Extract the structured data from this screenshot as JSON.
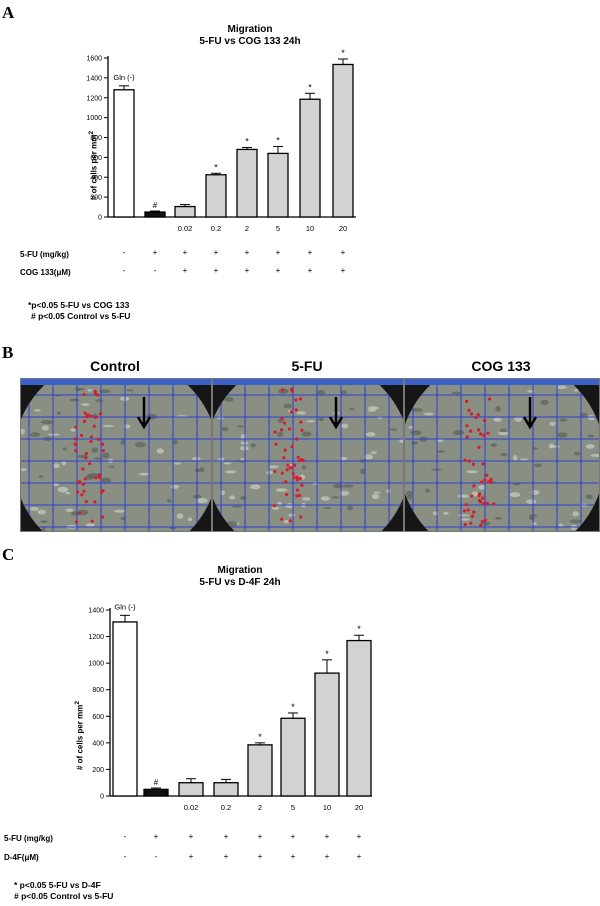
{
  "panel_a": {
    "label": "A",
    "title": "Migration",
    "subtitle": "5-FU vs COG 133 24h",
    "ylabel": "# of cells per mm",
    "ylabel_sup": "2",
    "gln_label": "Gln (-)",
    "row1_label": "5-FU (mg/kg)",
    "row2_label": "COG 133(μM)",
    "row1_marks": [
      "-",
      "+",
      "+",
      "+",
      "+",
      "+",
      "+",
      "+"
    ],
    "row2_marks": [
      "-",
      "-",
      "+",
      "+",
      "+",
      "+",
      "+",
      "+"
    ],
    "note1": "*p<0.05 5-FU vs COG 133",
    "note2": "# p<0.05 Control vs 5-FU"
  },
  "panel_b": {
    "label": "B",
    "image_titles": [
      "Control",
      "5-FU",
      "COG 133"
    ]
  },
  "panel_c": {
    "label": "C",
    "title": "Migration",
    "subtitle": "5-FU vs D-4F 24h",
    "ylabel": "# of cells per mm",
    "ylabel_sup": "2",
    "gln_label": "Gln (-)",
    "row1_label": "5-FU (mg/kg)",
    "row2_label": "D-4F(μM)",
    "row1_marks": [
      "-",
      "+",
      "+",
      "+",
      "+",
      "+",
      "+",
      "+"
    ],
    "row2_marks": [
      "-",
      "-",
      "+",
      "+",
      "+",
      "+",
      "+",
      "+"
    ],
    "note1": "* p<0.05 5-FU vs D-4F",
    "note2": "# p<0.05 Control vs 5-FU"
  },
  "colors": {
    "white_bar": "#ffffff",
    "black_bar": "#111111",
    "gray_bar": "#d2d2d2",
    "red_dots": "#d81c2c",
    "grid_blue": "#2b3fd6"
  },
  "chart_data": [
    {
      "type": "bar",
      "title": "Migration",
      "subtitle": "5-FU vs COG 133 24h",
      "xlabel": "",
      "ylabel": "# of cells per mm2",
      "ylim": [
        0,
        1600
      ],
      "yticks": [
        0,
        200,
        400,
        600,
        800,
        1000,
        1200,
        1400,
        1600
      ],
      "categories": [
        "",
        "",
        "0.02",
        "0.2",
        "2",
        "5",
        "10",
        "20"
      ],
      "values": [
        1280,
        50,
        105,
        425,
        680,
        640,
        1185,
        1535
      ],
      "errors": [
        40,
        10,
        20,
        15,
        20,
        70,
        60,
        55
      ],
      "markers": [
        "",
        "#",
        "",
        "*",
        "*",
        "*",
        "*",
        "*"
      ],
      "bar_colors": [
        "white",
        "black",
        "gray",
        "gray",
        "gray",
        "gray",
        "gray",
        "gray"
      ]
    },
    {
      "type": "bar",
      "title": "Migration",
      "subtitle": "5-FU vs D-4F 24h",
      "xlabel": "",
      "ylabel": "# of cells per mm2",
      "ylim": [
        0,
        1400
      ],
      "yticks": [
        0,
        200,
        400,
        600,
        800,
        1000,
        1200,
        1400
      ],
      "categories": [
        "",
        "",
        "0.02",
        "0.2",
        "2",
        "5",
        "10",
        "20"
      ],
      "values": [
        1310,
        50,
        100,
        100,
        385,
        585,
        925,
        1170
      ],
      "errors": [
        50,
        10,
        30,
        25,
        15,
        40,
        100,
        40
      ],
      "markers": [
        "",
        "#",
        "",
        "",
        "*",
        "*",
        "*",
        "*"
      ],
      "bar_colors": [
        "white",
        "black",
        "gray",
        "gray",
        "gray",
        "gray",
        "gray",
        "gray"
      ]
    }
  ]
}
